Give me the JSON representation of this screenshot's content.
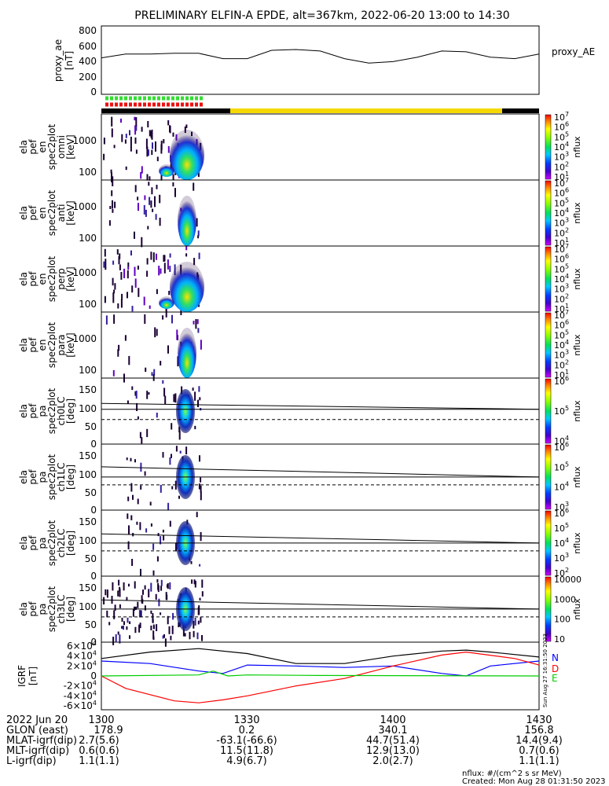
{
  "title": "PRELIMINARY ELFIN-A EPDE, alt=367km, 2022-06-20 13:00 to 14:30",
  "proxy_ae": {
    "ylabel": [
      "proxy_ae",
      "[nT]"
    ],
    "legend": "proxy_AE",
    "yticks": [
      "800",
      "600",
      "400",
      "200",
      "0"
    ],
    "ylim": [
      0,
      800
    ]
  },
  "spec_panels": [
    {
      "ylabel": [
        "ela",
        "pef",
        "en",
        "spec2plot",
        "omni",
        "[keV]"
      ],
      "yticks": [
        "1000",
        "100"
      ],
      "cbar_ticks": [
        "10^7",
        "10^6",
        "10^5",
        "10^4",
        "10^3",
        "10^2",
        "10^1"
      ],
      "cbar_label": "nflux"
    },
    {
      "ylabel": [
        "ela",
        "pef",
        "en",
        "spec2plot",
        "anti",
        "[keV]"
      ],
      "yticks": [
        "1000",
        "100"
      ],
      "cbar_ticks": [
        "10^7",
        "10^6",
        "10^5",
        "10^4",
        "10^3",
        "10^2",
        "10^1"
      ],
      "cbar_label": "nflux"
    },
    {
      "ylabel": [
        "ela",
        "pef",
        "en",
        "spec2plot",
        "perp",
        "[keV]"
      ],
      "yticks": [
        "1000",
        "100"
      ],
      "cbar_ticks": [
        "10^7",
        "10^6",
        "10^5",
        "10^4",
        "10^3",
        "10^2",
        "10^1"
      ],
      "cbar_label": "nflux"
    },
    {
      "ylabel": [
        "ela",
        "pef",
        "en",
        "spec2plot",
        "para",
        "[keV]"
      ],
      "yticks": [
        "1000",
        "100"
      ],
      "cbar_ticks": [
        "10^7",
        "10^6",
        "10^5",
        "10^4",
        "10^3",
        "10^2",
        "10^1"
      ],
      "cbar_label": "nflux"
    }
  ],
  "pa_panels": [
    {
      "ylabel": [
        "ela",
        "pef",
        "pa",
        "spec2plot",
        "ch0LC",
        "[deg]"
      ],
      "yticks": [
        "150",
        "100",
        "50",
        "0"
      ],
      "cbar_ticks": [
        "10^6",
        "10^5",
        "10^4"
      ],
      "cbar_label": "nflux"
    },
    {
      "ylabel": [
        "ela",
        "pef",
        "pa",
        "spec2plot",
        "ch1LC",
        "[deg]"
      ],
      "yticks": [
        "150",
        "100",
        "50",
        "0"
      ],
      "cbar_ticks": [
        "10^6",
        "10^5",
        "10^4",
        "10^3"
      ],
      "cbar_label": "nflux"
    },
    {
      "ylabel": [
        "ela",
        "pef",
        "pa",
        "spec2plot",
        "ch2LC",
        "[deg]"
      ],
      "yticks": [
        "150",
        "100",
        "50",
        "0"
      ],
      "cbar_ticks": [
        "10^6",
        "10^5",
        "10^4",
        "10^3",
        "10^2"
      ],
      "cbar_label": "nflux"
    },
    {
      "ylabel": [
        "ela",
        "pef",
        "pa",
        "spec2plot",
        "ch3LC",
        "[deg]"
      ],
      "yticks": [
        "150",
        "100",
        "50",
        "0"
      ],
      "cbar_ticks": [
        "10000",
        "1000",
        "100",
        "10"
      ],
      "cbar_label": "nflux"
    }
  ],
  "igrf": {
    "ylabel": [
      "IGRF",
      "[nT]"
    ],
    "yticks": [
      "6×10^4",
      "4×10^4",
      "2×10^4",
      "0",
      "-2×10^4",
      "-4×10^4",
      "-6×10^4"
    ],
    "legend": [
      "N",
      "D",
      "E"
    ],
    "legend_colors": [
      "#0000ff",
      "#ff0000",
      "#00cc00"
    ],
    "side_note": "Sun Aug 27 16:31:50 2023"
  },
  "footer": {
    "date": "2022 Jun 20",
    "row_labels": [
      "GLON (east)",
      "MLAT-igrf(dip)",
      "MLT-igrf(dip)",
      "L-igrf(dip)"
    ],
    "columns": [
      {
        "time": "1300",
        "values": [
          "178.9",
          "2.7(5.6)",
          "0.6(0.6)",
          "1.1(1.1)"
        ]
      },
      {
        "time": "1330",
        "values": [
          "0.2",
          "-63.1(-66.6)",
          "11.5(11.8)",
          "4.9(6.7)"
        ]
      },
      {
        "time": "1400",
        "values": [
          "340.1",
          "44.7(51.4)",
          "12.9(13.0)",
          "2.0(2.7)"
        ]
      },
      {
        "time": "1430",
        "values": [
          "156.8",
          "14.4(9.4)",
          "0.7(0.6)",
          "1.1(1.1)"
        ]
      }
    ],
    "units_note": "nflux: #/(cm^2 s sr MeV)",
    "created": "Created: Mon Aug 28 01:31:50 2023"
  },
  "colors": {
    "status_green": "#33dd33",
    "status_red": "#ee1111",
    "sunlit_yellow": "#f5d800",
    "eclipse_black": "#000000"
  },
  "chart_data": {
    "type": "line",
    "x_range": [
      "13:00",
      "14:30"
    ],
    "proxy_ae_nT": {
      "x_min": [
        0,
        5,
        10,
        15,
        20,
        25,
        30,
        35,
        40,
        45,
        50,
        55,
        60,
        65,
        70,
        75,
        80,
        85,
        90
      ],
      "y": [
        430,
        480,
        480,
        490,
        490,
        420,
        420,
        530,
        540,
        520,
        420,
        360,
        380,
        440,
        520,
        510,
        440,
        420,
        480
      ]
    },
    "igrf_nT": [
      {
        "name": "N",
        "color": "#0000ff",
        "x_min": [
          0,
          10,
          20,
          25,
          30,
          40,
          50,
          60,
          70,
          75,
          80,
          90
        ],
        "y": [
          30000,
          25000,
          10000,
          5000,
          22000,
          20000,
          17000,
          20000,
          5000,
          0,
          20000,
          30000
        ]
      },
      {
        "name": "D",
        "color": "#ff0000",
        "x_min": [
          0,
          5,
          15,
          20,
          25,
          30,
          40,
          50,
          60,
          70,
          75,
          85,
          90
        ],
        "y": [
          0,
          -25000,
          -50000,
          -54000,
          -48000,
          -40000,
          -20000,
          -5000,
          20000,
          42000,
          48000,
          35000,
          22000
        ]
      },
      {
        "name": "E",
        "color": "#00cc00",
        "x_min": [
          0,
          20,
          23,
          26,
          30,
          45,
          90
        ],
        "y": [
          0,
          2000,
          10000,
          0,
          2000,
          1000,
          0
        ]
      },
      {
        "name": "total",
        "color": "#000000",
        "x_min": [
          0,
          10,
          20,
          30,
          40,
          50,
          60,
          70,
          75,
          80,
          90
        ],
        "y": [
          35000,
          48000,
          55000,
          45000,
          25000,
          25000,
          40000,
          50000,
          52000,
          48000,
          38000
        ]
      }
    ],
    "pa_loss_cone_deg": [
      {
        "panel": "ch0LC",
        "solid_start": 110,
        "solid_end": 93,
        "dashed": 63
      },
      {
        "panel": "ch1LC",
        "solid_start": 118,
        "solid_end": 88,
        "dashed": 65
      },
      {
        "panel": "ch2LC",
        "solid_start": 115,
        "solid_end": 88,
        "dashed": 65
      },
      {
        "panel": "ch3LC",
        "solid_start": 115,
        "solid_end": 88,
        "dashed": 65
      }
    ]
  }
}
